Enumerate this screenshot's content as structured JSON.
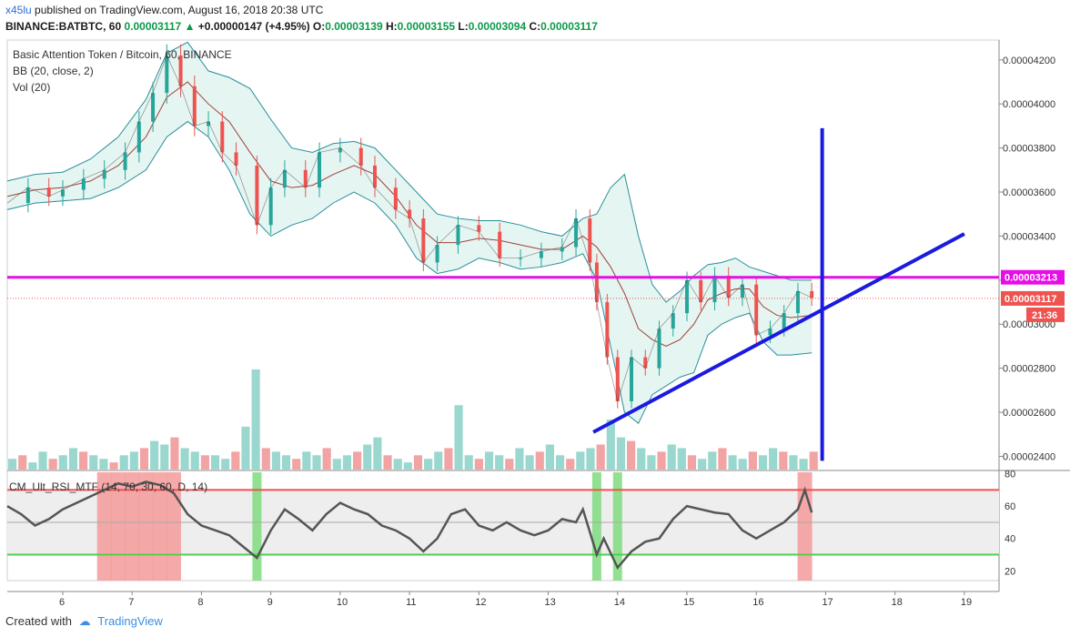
{
  "header": {
    "author": "x45lu",
    "published": "published on TradingView.com, August 16, 2018 20:38 UTC",
    "symbol": "BINANCE:BATBTC, 60",
    "last": "0.00003117",
    "change": "+0.00000147 (+4.95%)",
    "o_label": "O:",
    "o": "0.00003139",
    "h_label": "H:",
    "h": "0.00003155",
    "l_label": "L:",
    "l": "0.00003094",
    "c_label": "C:",
    "c": "0.00003117"
  },
  "legend": {
    "title": "Basic Attention Token / Bitcoin, 60, BINANCE",
    "bb": "BB (20, close, 2)",
    "vol": "Vol (20)",
    "rsi": "CM_Ult_RSI_MTF (14, 70, 30, 60, D, 14)"
  },
  "badges": {
    "level": "0.00003213",
    "price": "0.00003117",
    "countdown": "21:36"
  },
  "footer": {
    "created_with": "Created with",
    "brand": "TradingView"
  },
  "colors": {
    "up": "#26a69a",
    "down": "#ef5350",
    "magenta": "#e60ee6",
    "blue": "#1a1ae0",
    "bb_band": "#2a8f9a",
    "bb_basis": "#a0403a",
    "rsi_line": "#555555",
    "overbought": "#f05050",
    "oversold": "#4fd04f"
  },
  "chart_data": [
    {
      "type": "line",
      "title": "Basic Attention Token / Bitcoin, 60, BINANCE",
      "x_tick_labels": [
        "6",
        "7",
        "8",
        "9",
        "10",
        "11",
        "12",
        "13",
        "14",
        "15",
        "16",
        "17",
        "18",
        "19"
      ],
      "y_ticks": [
        2.4e-05,
        2.6e-05,
        2.8e-05,
        3e-05,
        3.2e-05,
        3.4e-05,
        3.6e-05,
        3.8e-05,
        4e-05,
        4.2e-05
      ],
      "y_tick_labels": [
        "0.00002400",
        "0.00002600",
        "0.00002800",
        "0.00003000",
        "0.00003200",
        "0.00003400",
        "0.00003600",
        "0.00003800",
        "0.00004000",
        "0.00004200"
      ],
      "ylim": [
        2.34e-05,
        4.29e-05
      ],
      "xlim": [
        5.2,
        19.5
      ],
      "series": [
        {
          "x": [
            5.2,
            5.5,
            5.8,
            6.0,
            6.3,
            6.6,
            6.9,
            7.1,
            7.3,
            7.5,
            7.7,
            7.9,
            8.1,
            8.3,
            8.5,
            8.8,
            9.0,
            9.2,
            9.5,
            9.7,
            10.0,
            10.3,
            10.5,
            10.8,
            11.0,
            11.2,
            11.4,
            11.7,
            12.0,
            12.3,
            12.6,
            12.9,
            13.2,
            13.4,
            13.6,
            13.7,
            13.85,
            14.0,
            14.2,
            14.4,
            14.6,
            14.8,
            15.0,
            15.2,
            15.4,
            15.6,
            15.8,
            16.0,
            16.2,
            16.4,
            16.6,
            16.8
          ],
          "values": [
            3.55e-05,
            3.62e-05,
            3.58e-05,
            3.61e-05,
            3.66e-05,
            3.7e-05,
            3.78e-05,
            3.92e-05,
            4.05e-05,
            4.22e-05,
            4.08e-05,
            3.9e-05,
            3.92e-05,
            3.78e-05,
            3.72e-05,
            3.45e-05,
            3.62e-05,
            3.7e-05,
            3.62e-05,
            3.78e-05,
            3.8e-05,
            3.72e-05,
            3.62e-05,
            3.52e-05,
            3.48e-05,
            3.28e-05,
            3.36e-05,
            3.45e-05,
            3.42e-05,
            3.3e-05,
            3.3e-05,
            3.33e-05,
            3.35e-05,
            3.48e-05,
            3.28e-05,
            3.1e-05,
            2.85e-05,
            2.65e-05,
            2.85e-05,
            2.8e-05,
            2.98e-05,
            3.05e-05,
            3.2e-05,
            3.1e-05,
            3.22e-05,
            3.12e-05,
            3.18e-05,
            2.95e-05,
            2.98e-05,
            3.05e-05,
            3.15e-05,
            3.12e-05
          ]
        }
      ],
      "bollinger": {
        "x": [
          5.2,
          5.6,
          6.0,
          6.4,
          6.8,
          7.2,
          7.5,
          7.8,
          8.1,
          8.4,
          8.7,
          9.0,
          9.3,
          9.6,
          9.9,
          10.2,
          10.5,
          10.8,
          11.1,
          11.4,
          11.7,
          12.0,
          12.3,
          12.6,
          12.9,
          13.2,
          13.5,
          13.7,
          13.9,
          14.1,
          14.3,
          14.5,
          14.7,
          14.9,
          15.1,
          15.3,
          15.5,
          15.7,
          15.9,
          16.1,
          16.3,
          16.5,
          16.8
        ],
        "upper": [
          3.65e-05,
          3.68e-05,
          3.69e-05,
          3.75e-05,
          3.85e-05,
          4.02e-05,
          4.23e-05,
          4.28e-05,
          4.15e-05,
          4.12e-05,
          4.07e-05,
          3.93e-05,
          3.8e-05,
          3.78e-05,
          3.82e-05,
          3.83e-05,
          3.8e-05,
          3.7e-05,
          3.6e-05,
          3.5e-05,
          3.48e-05,
          3.47e-05,
          3.47e-05,
          3.45e-05,
          3.42e-05,
          3.4e-05,
          3.48e-05,
          3.5e-05,
          3.62e-05,
          3.68e-05,
          3.4e-05,
          3.18e-05,
          3.1e-05,
          3.15e-05,
          3.22e-05,
          3.27e-05,
          3.28e-05,
          3.3e-05,
          3.26e-05,
          3.24e-05,
          3.22e-05,
          3.2e-05,
          3.2e-05
        ],
        "lower": [
          3.52e-05,
          3.55e-05,
          3.56e-05,
          3.57e-05,
          3.62e-05,
          3.7e-05,
          3.85e-05,
          3.92e-05,
          3.85e-05,
          3.7e-05,
          3.5e-05,
          3.4e-05,
          3.45e-05,
          3.48e-05,
          3.55e-05,
          3.6e-05,
          3.55e-05,
          3.45e-05,
          3.3e-05,
          3.23e-05,
          3.25e-05,
          3.3e-05,
          3.28e-05,
          3.25e-05,
          3.26e-05,
          3.28e-05,
          3.32e-05,
          3.2e-05,
          2.9e-05,
          2.6e-05,
          2.55e-05,
          2.68e-05,
          2.72e-05,
          2.76e-05,
          2.78e-05,
          2.95e-05,
          3e-05,
          3.03e-05,
          3.05e-05,
          2.92e-05,
          2.86e-05,
          2.86e-05,
          2.87e-05
        ],
        "basis": [
          3.58e-05,
          3.61e-05,
          3.62e-05,
          3.65e-05,
          3.72e-05,
          3.85e-05,
          4.03e-05,
          4.1e-05,
          4e-05,
          3.92e-05,
          3.78e-05,
          3.65e-05,
          3.62e-05,
          3.63e-05,
          3.68e-05,
          3.72e-05,
          3.68e-05,
          3.58e-05,
          3.45e-05,
          3.37e-05,
          3.37e-05,
          3.39e-05,
          3.38e-05,
          3.36e-05,
          3.34e-05,
          3.34e-05,
          3.4e-05,
          3.35e-05,
          3.26e-05,
          3.14e-05,
          2.98e-05,
          2.93e-05,
          2.9e-05,
          2.93e-05,
          3e-05,
          3.11e-05,
          3.14e-05,
          3.16e-05,
          3.16e-05,
          3.08e-05,
          3.04e-05,
          3.03e-05,
          3.04e-05
        ]
      },
      "horizontal_level": 3.213e-05,
      "last_price": 3.117e-05,
      "trendline": {
        "x": [
          13.65,
          19.0
        ],
        "values": [
          2.51e-05,
          3.41e-05
        ]
      },
      "vertical_marker": {
        "x": 16.95,
        "range": [
          2.38e-05,
          3.89e-05
        ]
      },
      "grid": false
    },
    {
      "type": "bar",
      "title": "Vol (20)",
      "values": [
        3,
        4,
        2,
        5,
        3,
        4,
        6,
        5,
        4,
        3,
        2,
        4,
        5,
        6,
        8,
        7,
        9,
        6,
        5,
        4,
        4,
        3,
        5,
        12,
        28,
        6,
        5,
        4,
        3,
        5,
        4,
        6,
        3,
        4,
        5,
        7,
        9,
        4,
        3,
        2,
        4,
        3,
        5,
        6,
        18,
        4,
        3,
        5,
        4,
        3,
        6,
        4,
        5,
        7,
        4,
        3,
        5,
        6,
        7,
        14,
        9,
        8,
        6,
        4,
        5,
        7,
        6,
        4,
        3,
        5,
        6,
        4,
        3,
        5,
        4,
        6,
        5,
        4,
        3,
        5
      ]
    },
    {
      "type": "line",
      "title": "CM_Ult_RSI_MTF (14, 70, 30, 60, D, 14)",
      "y_ticks": [
        20,
        40,
        60,
        80
      ],
      "ylim": [
        14,
        82
      ],
      "overbought": 70,
      "oversold": 30,
      "midline": 50,
      "series": [
        {
          "x": [
            5.2,
            5.4,
            5.6,
            5.8,
            6.0,
            6.2,
            6.4,
            6.6,
            6.8,
            7.0,
            7.2,
            7.4,
            7.6,
            7.8,
            8.0,
            8.2,
            8.4,
            8.6,
            8.8,
            9.0,
            9.2,
            9.4,
            9.6,
            9.8,
            10.0,
            10.2,
            10.4,
            10.6,
            10.8,
            11.0,
            11.2,
            11.4,
            11.6,
            11.8,
            12.0,
            12.2,
            12.4,
            12.6,
            12.8,
            13.0,
            13.2,
            13.4,
            13.5,
            13.7,
            13.8,
            14.0,
            14.2,
            14.4,
            14.6,
            14.8,
            15.0,
            15.2,
            15.4,
            15.6,
            15.8,
            16.0,
            16.2,
            16.4,
            16.6,
            16.7,
            16.8
          ],
          "values": [
            60,
            55,
            48,
            52,
            58,
            62,
            66,
            70,
            74,
            72,
            75,
            73,
            68,
            55,
            48,
            45,
            42,
            35,
            28,
            45,
            58,
            52,
            45,
            55,
            62,
            58,
            55,
            48,
            45,
            40,
            32,
            40,
            55,
            58,
            48,
            45,
            50,
            45,
            42,
            45,
            52,
            50,
            58,
            30,
            40,
            22,
            32,
            38,
            40,
            52,
            60,
            58,
            56,
            55,
            45,
            40,
            45,
            50,
            58,
            70,
            56
          ]
        }
      ]
    }
  ]
}
